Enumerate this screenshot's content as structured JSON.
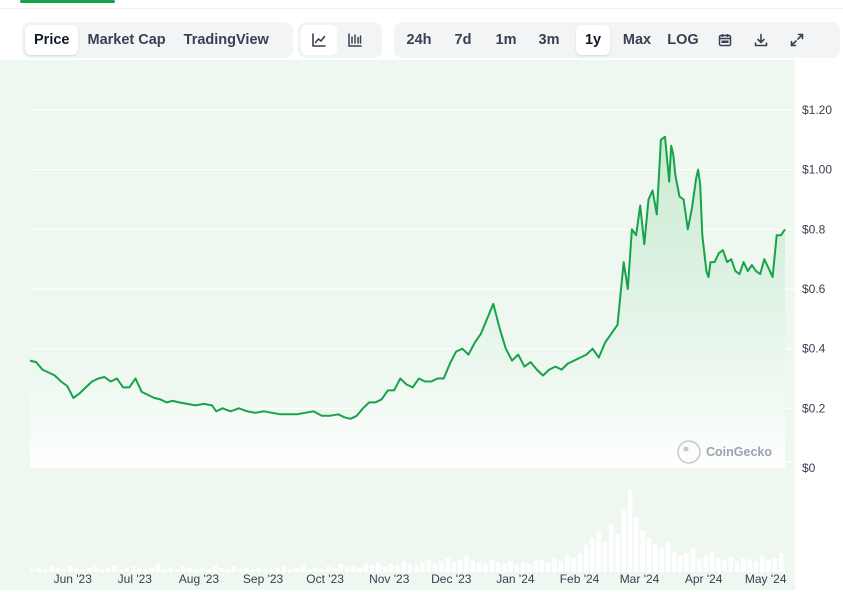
{
  "tabs": {
    "type_tabs": [
      "Price",
      "Market Cap",
      "TradingView"
    ],
    "type_active": "Price",
    "range_tabs": [
      "24h",
      "7d",
      "1m",
      "3m",
      "1y",
      "Max",
      "LOG"
    ],
    "range_active": "1y"
  },
  "icons": {
    "line_chart": "line-chart-icon",
    "candle_chart": "candlestick-icon",
    "calendar": "calendar-icon",
    "download": "download-icon",
    "expand": "expand-icon"
  },
  "watermark": "CoinGecko",
  "colors": {
    "line": "#16a34a",
    "area_fill": "#e9f5ec",
    "volume": "#d1d5db",
    "grid": "#e5e7eb"
  },
  "chart_data": {
    "type": "line",
    "title": "",
    "xlabel": "",
    "ylabel": "",
    "ylim": [
      0,
      1.2
    ],
    "y_ticks": [
      "$0",
      "$0.2",
      "$0.4",
      "$0.6",
      "$0.8",
      "$1.00",
      "$1.20"
    ],
    "y_tick_values": [
      0,
      0.2,
      0.4,
      0.6,
      0.8,
      1.0,
      1.2
    ],
    "x_ticks": [
      "Jun '23",
      "Jul '23",
      "Aug '23",
      "Sep '23",
      "Oct '23",
      "Nov '23",
      "Dec '23",
      "Jan '24",
      "Feb '24",
      "Mar '24",
      "Apr '24",
      "May '24"
    ],
    "x_tick_dates": [
      "2023-06-01",
      "2023-07-01",
      "2023-08-01",
      "2023-09-01",
      "2023-10-01",
      "2023-11-01",
      "2023-12-01",
      "2024-01-01",
      "2024-02-01",
      "2024-03-01",
      "2024-04-01",
      "2024-05-01"
    ],
    "grid": true,
    "series": [
      {
        "x": [
          "2023-05-21",
          "2023-05-24",
          "2023-05-27",
          "2023-05-30",
          "2023-06-02",
          "2023-06-05",
          "2023-06-08",
          "2023-06-11",
          "2023-06-14",
          "2023-06-17",
          "2023-06-20",
          "2023-06-23",
          "2023-06-26",
          "2023-06-29",
          "2023-07-02",
          "2023-07-05",
          "2023-07-08",
          "2023-07-11",
          "2023-07-14",
          "2023-07-17",
          "2023-07-20",
          "2023-07-23",
          "2023-07-26",
          "2023-07-29",
          "2023-08-01",
          "2023-08-05",
          "2023-08-09",
          "2023-08-13",
          "2023-08-17",
          "2023-08-19",
          "2023-08-22",
          "2023-08-26",
          "2023-08-30",
          "2023-09-03",
          "2023-09-07",
          "2023-09-11",
          "2023-09-15",
          "2023-09-19",
          "2023-09-23",
          "2023-09-27",
          "2023-10-01",
          "2023-10-05",
          "2023-10-09",
          "2023-10-13",
          "2023-10-17",
          "2023-10-20",
          "2023-10-23",
          "2023-10-26",
          "2023-10-29",
          "2023-11-01",
          "2023-11-04",
          "2023-11-07",
          "2023-11-10",
          "2023-11-13",
          "2023-11-16",
          "2023-11-19",
          "2023-11-22",
          "2023-11-25",
          "2023-11-28",
          "2023-12-01",
          "2023-12-04",
          "2023-12-07",
          "2023-12-10",
          "2023-12-13",
          "2023-12-16",
          "2023-12-19",
          "2023-12-22",
          "2023-12-25",
          "2023-12-28",
          "2023-12-31",
          "2024-01-03",
          "2024-01-06",
          "2024-01-09",
          "2024-01-12",
          "2024-01-15",
          "2024-01-18",
          "2024-01-21",
          "2024-01-24",
          "2024-01-27",
          "2024-01-30",
          "2024-02-02",
          "2024-02-05",
          "2024-02-08",
          "2024-02-11",
          "2024-02-14",
          "2024-02-17",
          "2024-02-20",
          "2024-02-23",
          "2024-02-26",
          "2024-02-29",
          "2024-03-03",
          "2024-03-05",
          "2024-03-07",
          "2024-03-09",
          "2024-03-11",
          "2024-03-13",
          "2024-03-15",
          "2024-03-17",
          "2024-03-19",
          "2024-03-21",
          "2024-03-23",
          "2024-03-25",
          "2024-03-26",
          "2024-03-27",
          "2024-03-28",
          "2024-03-30",
          "2024-04-01",
          "2024-04-03",
          "2024-04-05",
          "2024-04-07",
          "2024-04-08",
          "2024-04-09",
          "2024-04-10",
          "2024-04-12",
          "2024-04-13",
          "2024-04-14",
          "2024-04-16",
          "2024-04-18",
          "2024-04-20",
          "2024-04-22",
          "2024-04-24",
          "2024-04-26",
          "2024-04-28",
          "2024-04-30",
          "2024-05-02",
          "2024-05-04",
          "2024-05-06",
          "2024-05-08",
          "2024-05-10",
          "2024-05-12",
          "2024-05-14",
          "2024-05-16",
          "2024-05-18",
          "2024-05-20"
        ],
        "y": [
          0.36,
          0.355,
          0.33,
          0.32,
          0.31,
          0.29,
          0.275,
          0.235,
          0.25,
          0.27,
          0.29,
          0.3,
          0.305,
          0.29,
          0.3,
          0.27,
          0.27,
          0.3,
          0.255,
          0.245,
          0.235,
          0.23,
          0.22,
          0.225,
          0.22,
          0.215,
          0.21,
          0.215,
          0.21,
          0.19,
          0.2,
          0.19,
          0.2,
          0.19,
          0.185,
          0.19,
          0.185,
          0.18,
          0.18,
          0.18,
          0.185,
          0.19,
          0.175,
          0.175,
          0.18,
          0.17,
          0.165,
          0.175,
          0.2,
          0.22,
          0.22,
          0.23,
          0.26,
          0.26,
          0.3,
          0.28,
          0.27,
          0.3,
          0.29,
          0.29,
          0.3,
          0.3,
          0.35,
          0.39,
          0.4,
          0.38,
          0.42,
          0.45,
          0.5,
          0.55,
          0.47,
          0.4,
          0.36,
          0.38,
          0.34,
          0.355,
          0.33,
          0.31,
          0.33,
          0.34,
          0.33,
          0.35,
          0.36,
          0.37,
          0.38,
          0.4,
          0.37,
          0.42,
          0.45,
          0.48,
          0.69,
          0.6,
          0.8,
          0.78,
          0.88,
          0.75,
          0.9,
          0.93,
          0.85,
          1.1,
          1.11,
          0.96,
          1.08,
          1.05,
          0.98,
          0.91,
          0.9,
          0.8,
          0.87,
          0.97,
          1.0,
          0.95,
          0.78,
          0.66,
          0.64,
          0.69,
          0.69,
          0.72,
          0.73,
          0.69,
          0.7,
          0.66,
          0.65,
          0.69,
          0.66,
          0.68,
          0.66,
          0.65,
          0.7,
          0.67,
          0.64,
          0.78,
          0.78,
          0.8
        ]
      }
    ],
    "volume": [
      2,
      3,
      2,
      4,
      3,
      2,
      5,
      3,
      2,
      3,
      4,
      2,
      3,
      5,
      2,
      3,
      4,
      3,
      2,
      3,
      6,
      2,
      3,
      2,
      4,
      3,
      2,
      3,
      2,
      5,
      3,
      2,
      4,
      2,
      3,
      2,
      3,
      2,
      2,
      3,
      4,
      2,
      3,
      5,
      2,
      3,
      2,
      4,
      3,
      6,
      4,
      5,
      3,
      6,
      5,
      7,
      4,
      6,
      5,
      8,
      6,
      5,
      7,
      9,
      6,
      8,
      10,
      7,
      9,
      12,
      8,
      7,
      6,
      9,
      7,
      6,
      8,
      5,
      7,
      6,
      8,
      9,
      7,
      10,
      8,
      12,
      10,
      14,
      20,
      25,
      30,
      22,
      35,
      28,
      45,
      60,
      40,
      30,
      25,
      20,
      18,
      22,
      15,
      12,
      14,
      18,
      10,
      12,
      15,
      10,
      9,
      11,
      8,
      10,
      9,
      8,
      12,
      9,
      10,
      14
    ]
  }
}
